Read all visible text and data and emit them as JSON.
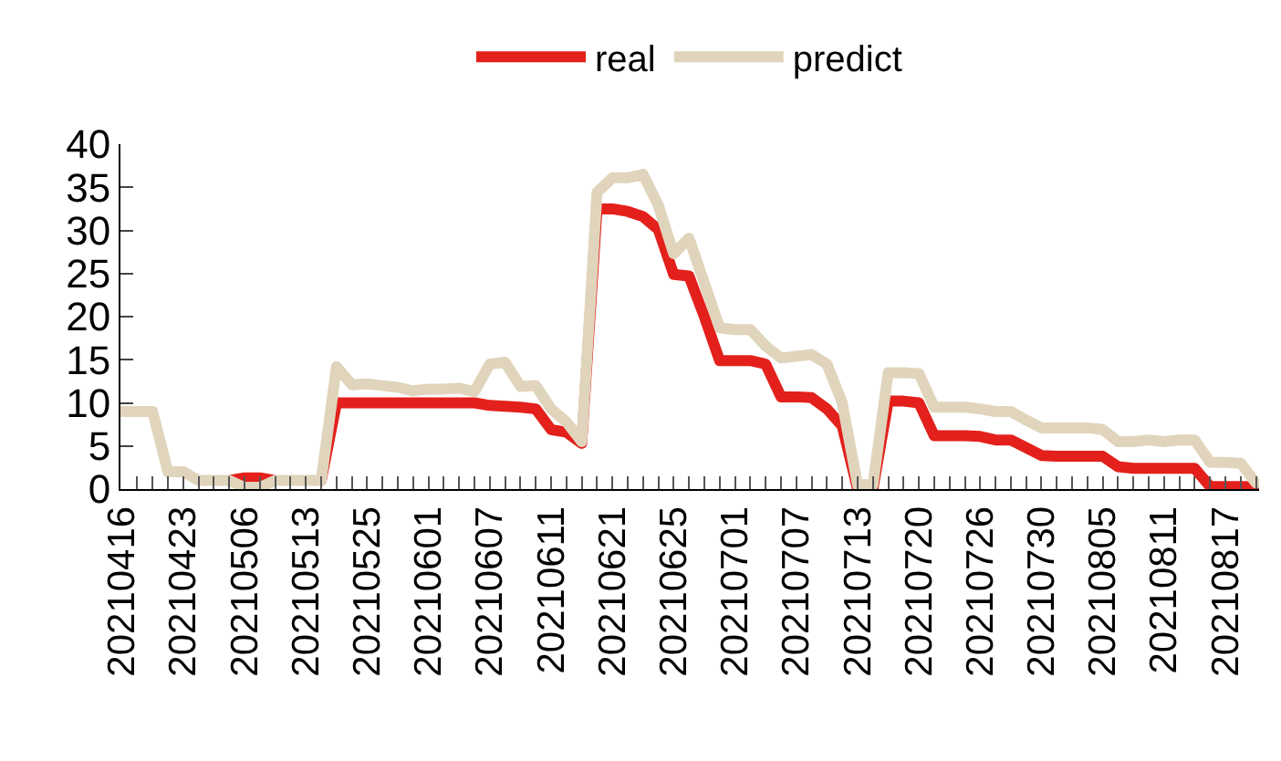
{
  "chart_data": {
    "type": "line",
    "categories": [
      "20210416",
      null,
      null,
      null,
      "20210423",
      null,
      null,
      null,
      "20210506",
      null,
      null,
      null,
      "20210513",
      null,
      null,
      null,
      "20210525",
      null,
      null,
      null,
      "20210601",
      null,
      null,
      null,
      "20210607",
      null,
      null,
      null,
      "20210611",
      null,
      null,
      null,
      "20210621",
      null,
      null,
      null,
      "20210625",
      null,
      null,
      null,
      "20210701",
      null,
      null,
      null,
      "20210707",
      null,
      null,
      null,
      "20210713",
      null,
      null,
      null,
      "20210720",
      null,
      null,
      null,
      "20210726",
      null,
      null,
      null,
      "20210730",
      null,
      null,
      null,
      "20210805",
      null,
      null,
      null,
      "20210811",
      null,
      null,
      null,
      "20210817",
      null,
      null
    ],
    "series": [
      {
        "name": "real",
        "color": "#e3201b",
        "values": [
          null,
          null,
          null,
          null,
          null,
          null,
          null,
          1,
          1.3,
          1.3,
          1,
          null,
          null,
          1,
          10,
          10,
          10,
          10,
          10,
          10,
          10,
          10,
          10,
          10,
          9.7,
          9.6,
          9.5,
          9.3,
          6.9,
          6.6,
          5.3,
          32.5,
          32.5,
          32.2,
          31.6,
          30.1,
          24.9,
          24.7,
          20,
          14.9,
          14.9,
          14.9,
          14.5,
          10.7,
          10.7,
          10.6,
          9.3,
          7.3,
          0,
          0,
          10.2,
          10.2,
          10,
          6.2,
          6.2,
          6.2,
          6.1,
          5.7,
          5.7,
          4.8,
          3.9,
          3.8,
          3.8,
          3.8,
          3.8,
          2.6,
          2.4,
          2.4,
          2.4,
          2.4,
          2.4,
          0.3,
          0.3,
          0.3,
          0.3
        ]
      },
      {
        "name": "predict",
        "color": "#e0d5bc",
        "values": [
          9,
          9,
          9,
          2,
          2,
          1,
          1,
          1,
          0.2,
          0.2,
          1,
          1,
          1,
          1,
          14.2,
          12.1,
          12.2,
          12,
          11.8,
          11.4,
          11.6,
          11.6,
          11.7,
          11.3,
          14.5,
          14.7,
          11.9,
          12,
          9.3,
          7.8,
          5.5,
          34.4,
          36.1,
          36.1,
          36.5,
          32.9,
          27.3,
          29.1,
          23.9,
          18.7,
          18.5,
          18.5,
          16.6,
          15.2,
          15.4,
          15.6,
          14.5,
          10,
          0.5,
          0.5,
          13.5,
          13.5,
          13.4,
          9.5,
          9.5,
          9.5,
          9.3,
          9,
          9,
          8,
          7.1,
          7.1,
          7.1,
          7.1,
          6.9,
          5.5,
          5.5,
          5.7,
          5.5,
          5.7,
          5.7,
          3.1,
          3.1,
          3,
          0.7
        ]
      }
    ],
    "ylim": [
      0,
      40
    ],
    "yticks": [
      0,
      5,
      10,
      15,
      20,
      25,
      30,
      35,
      40
    ],
    "legend": "top",
    "marker": "none",
    "line_style": "solid"
  }
}
